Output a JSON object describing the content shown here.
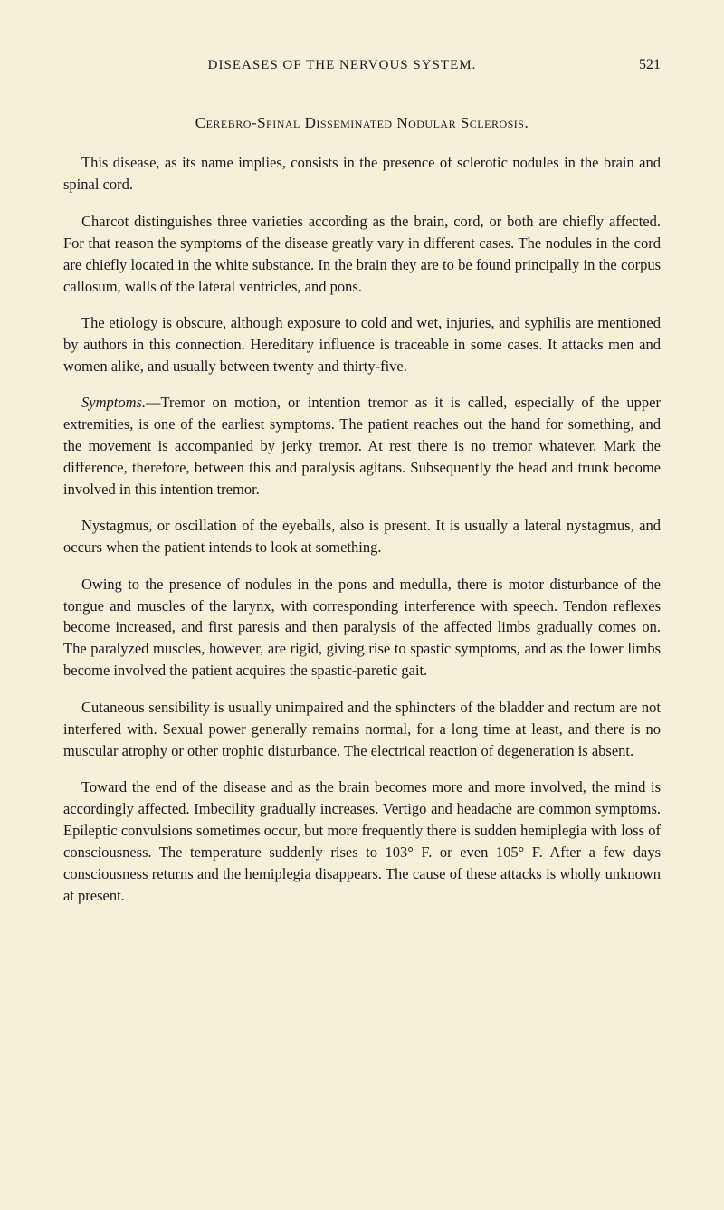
{
  "header": {
    "running_title": "DISEASES OF THE NERVOUS SYSTEM.",
    "page_number": "521"
  },
  "section_title": "Cerebro-Spinal Disseminated Nodular Sclerosis.",
  "paragraphs": {
    "p1": "This disease, as its name implies, consists in the presence of sclerotic nodules in the brain and spinal cord.",
    "p2": "Charcot distinguishes three varieties according as the brain, cord, or both are chiefly affected. For that reason the symptoms of the disease greatly vary in different cases. The nodules in the cord are chiefly located in the white substance. In the brain they are to be found principally in the corpus callosum, walls of the lateral ventricles, and pons.",
    "p3": "The etiology is obscure, although exposure to cold and wet, injuries, and syphilis are mentioned by authors in this connection. Hereditary influence is traceable in some cases. It attacks men and women alike, and usually between twenty and thirty-five.",
    "p4_label": "Symptoms.",
    "p4": "—Tremor on motion, or intention tremor as it is called, especially of the upper extremities, is one of the earliest symptoms. The patient reaches out the hand for something, and the movement is accompanied by jerky tremor. At rest there is no tremor whatever. Mark the difference, therefore, between this and paralysis agitans. Subsequently the head and trunk become involved in this intention tremor.",
    "p5": "Nystagmus, or oscillation of the eyeballs, also is present. It is usually a lateral nystagmus, and occurs when the patient intends to look at something.",
    "p6": "Owing to the presence of nodules in the pons and medulla, there is motor disturbance of the tongue and muscles of the larynx, with corresponding interference with speech. Tendon reflexes become increased, and first paresis and then paralysis of the affected limbs gradually comes on. The paralyzed muscles, however, are rigid, giving rise to spastic symptoms, and as the lower limbs become involved the patient acquires the spastic-paretic gait.",
    "p7": "Cutaneous sensibility is usually unimpaired and the sphincters of the bladder and rectum are not interfered with. Sexual power generally remains normal, for a long time at least, and there is no muscular atrophy or other trophic disturbance. The electrical reaction of degeneration is absent.",
    "p8": "Toward the end of the disease and as the brain becomes more and more involved, the mind is accordingly affected. Imbecility gradually increases. Vertigo and headache are common symptoms. Epileptic convulsions sometimes occur, but more frequently there is sudden hemiplegia with loss of consciousness. The temperature suddenly rises to 103° F. or even 105° F. After a few days consciousness returns and the hemiplegia disappears. The cause of these attacks is wholly unknown at present."
  },
  "colors": {
    "background": "#f5f0d8",
    "text": "#1a1a1a"
  },
  "typography": {
    "body_fontsize": 16.5,
    "header_fontsize": 15,
    "title_fontsize": 17
  }
}
